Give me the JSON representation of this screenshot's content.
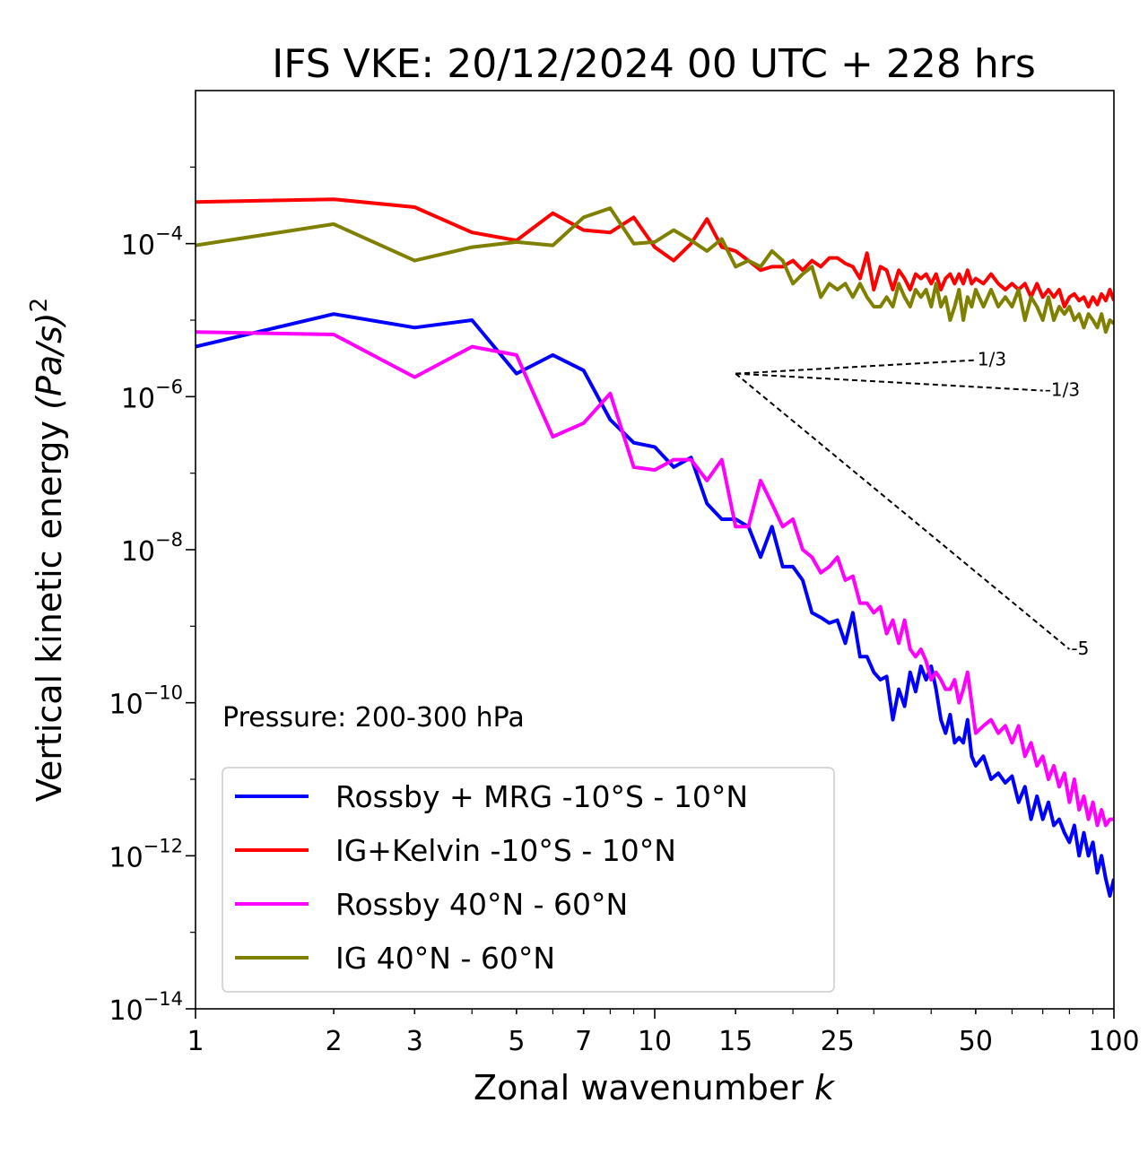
{
  "chart_data": {
    "type": "line",
    "title": "IFS VKE: 20/12/2024 00 UTC + 228 hrs",
    "xlabel": "Zonal wavenumber",
    "xlabel_var": "k",
    "ylabel": "Vertical kinetic energy",
    "ylabel_unit": "(Pa/s)",
    "ylabel_unit_exp": "2",
    "x_scale": "log",
    "y_scale": "log",
    "xlim": [
      1,
      100
    ],
    "ylim": [
      1e-14,
      0.01
    ],
    "x_ticks": [
      {
        "value": 1,
        "label": "1"
      },
      {
        "value": 2,
        "label": "2"
      },
      {
        "value": 3,
        "label": "3"
      },
      {
        "value": 5,
        "label": "5"
      },
      {
        "value": 7,
        "label": "7"
      },
      {
        "value": 10,
        "label": "10"
      },
      {
        "value": 15,
        "label": "15"
      },
      {
        "value": 25,
        "label": "25"
      },
      {
        "value": 50,
        "label": "50"
      },
      {
        "value": 100,
        "label": "100"
      }
    ],
    "y_ticks": [
      {
        "value": -14,
        "base": "10",
        "exp": "−14"
      },
      {
        "value": -12,
        "base": "10",
        "exp": "−12"
      },
      {
        "value": -10,
        "base": "10",
        "exp": "−10"
      },
      {
        "value": -8,
        "base": "10",
        "exp": "−8"
      },
      {
        "value": -6,
        "base": "10",
        "exp": "−6"
      },
      {
        "value": -4,
        "base": "10",
        "exp": "−4"
      }
    ],
    "annotation": "Pressure: 200-300 hPa",
    "legend_position": "lower-left",
    "grid": false,
    "reference_lines": [
      {
        "label": "1/3",
        "x": [
          15,
          50
        ],
        "y": [
          2e-06,
          3e-06
        ]
      },
      {
        "label": "-1/3",
        "x": [
          15,
          70
        ],
        "y": [
          2e-06,
          1.2e-06
        ]
      },
      {
        "label": "-5",
        "x": [
          15,
          80
        ],
        "y": [
          2e-06,
          5e-10
        ]
      }
    ],
    "series": [
      {
        "name": "Rossby + MRG -10°S - 10°N",
        "color": "#0000ff",
        "x": [
          1,
          2,
          3,
          4,
          5,
          6,
          7,
          8,
          9,
          10,
          11,
          12,
          13,
          14,
          15,
          16,
          17,
          18,
          19,
          20,
          21,
          22,
          23,
          24,
          25,
          26,
          27,
          28,
          29,
          30,
          31,
          32,
          33,
          34,
          35,
          36,
          37,
          38,
          39,
          40,
          41,
          42,
          43,
          44,
          45,
          46,
          47,
          48,
          49,
          50,
          52,
          54,
          56,
          58,
          60,
          62,
          64,
          66,
          68,
          70,
          72,
          74,
          76,
          78,
          80,
          82,
          84,
          86,
          88,
          90,
          92,
          94,
          96,
          98,
          100
        ],
        "y": [
          4.5e-06,
          1.2e-05,
          8e-06,
          1e-05,
          2e-06,
          3.5e-06,
          2.2e-06,
          5e-07,
          2.5e-07,
          2.2e-07,
          1.2e-07,
          1.6e-07,
          4e-08,
          2.5e-08,
          2.5e-08,
          2e-08,
          8e-09,
          2e-08,
          6e-09,
          6e-09,
          4e-09,
          1.5e-09,
          1.3e-09,
          1.1e-09,
          1.2e-09,
          6e-10,
          1.5e-09,
          4e-10,
          4e-10,
          2.5e-10,
          2e-10,
          2.2e-10,
          6e-11,
          1.5e-10,
          9e-11,
          2.5e-10,
          1.4e-10,
          3e-10,
          2e-10,
          3e-10,
          1.5e-10,
          6e-11,
          4e-11,
          7e-11,
          3e-11,
          3.5e-11,
          3e-11,
          6e-11,
          2e-11,
          1.5e-11,
          2e-11,
          1e-11,
          1.2e-11,
          9e-12,
          1.1e-11,
          5e-12,
          8e-12,
          3e-12,
          6e-12,
          3e-12,
          5e-12,
          2.5e-12,
          3e-12,
          2e-12,
          1.5e-12,
          2.5e-12,
          1e-12,
          2e-12,
          1e-12,
          1.5e-12,
          6e-13,
          1e-12,
          5e-13,
          3e-13,
          5e-13
        ]
      },
      {
        "name": "IG+Kelvin -10°S - 10°N",
        "color": "#ff0000",
        "x": [
          1,
          2,
          3,
          4,
          5,
          6,
          7,
          8,
          9,
          10,
          11,
          12,
          13,
          14,
          15,
          16,
          17,
          18,
          19,
          20,
          21,
          22,
          23,
          24,
          25,
          26,
          27,
          28,
          29,
          30,
          31,
          32,
          33,
          34,
          35,
          36,
          37,
          38,
          39,
          40,
          41,
          42,
          43,
          44,
          45,
          46,
          47,
          48,
          49,
          50,
          52,
          54,
          56,
          58,
          60,
          62,
          64,
          66,
          68,
          70,
          72,
          74,
          76,
          78,
          80,
          82,
          84,
          86,
          88,
          90,
          92,
          94,
          96,
          98,
          100
        ],
        "y": [
          0.00035,
          0.00038,
          0.0003,
          0.00014,
          0.00011,
          0.00025,
          0.00015,
          0.00014,
          0.00022,
          9e-05,
          6e-05,
          0.0001,
          0.00021,
          9e-05,
          8e-05,
          6e-05,
          4.5e-05,
          5e-05,
          5e-05,
          6e-05,
          4.5e-05,
          6e-05,
          5e-05,
          6.5e-05,
          6.5e-05,
          5.5e-05,
          5e-05,
          3.5e-05,
          7.5e-05,
          2.5e-05,
          5e-05,
          4.5e-05,
          2.5e-05,
          4.5e-05,
          3.5e-05,
          2.5e-05,
          4e-05,
          3.5e-05,
          4e-05,
          3e-05,
          4e-05,
          2.5e-05,
          3.5e-05,
          4e-05,
          3e-05,
          4e-05,
          3e-05,
          4.5e-05,
          3e-05,
          3.5e-05,
          3e-05,
          4e-05,
          3e-05,
          2.5e-05,
          3e-05,
          2.5e-05,
          3e-05,
          2e-05,
          3e-05,
          2e-05,
          2.5e-05,
          2e-05,
          2.5e-05,
          1.5e-05,
          2e-05,
          2.2e-05,
          1.8e-05,
          2e-05,
          1.5e-05,
          2e-05,
          1.6e-05,
          2.2e-05,
          1.8e-05,
          2.5e-05,
          1.8e-05
        ]
      },
      {
        "name": "Rossby 40°N - 60°N",
        "color": "#ff00ff",
        "x": [
          1,
          2,
          3,
          4,
          5,
          6,
          7,
          8,
          9,
          10,
          11,
          12,
          13,
          14,
          15,
          16,
          17,
          18,
          19,
          20,
          21,
          22,
          23,
          24,
          25,
          26,
          27,
          28,
          29,
          30,
          31,
          32,
          33,
          34,
          35,
          36,
          37,
          38,
          39,
          40,
          41,
          42,
          43,
          44,
          45,
          46,
          47,
          48,
          49,
          50,
          52,
          54,
          56,
          58,
          60,
          62,
          64,
          66,
          68,
          70,
          72,
          74,
          76,
          78,
          80,
          82,
          84,
          86,
          88,
          90,
          92,
          94,
          96,
          98,
          100
        ],
        "y": [
          7e-06,
          6.5e-06,
          1.8e-06,
          4.5e-06,
          3.5e-06,
          3e-07,
          4.5e-07,
          1.1e-06,
          1.2e-07,
          1.1e-07,
          1.5e-07,
          1.5e-07,
          8e-08,
          1.5e-07,
          2e-08,
          2e-08,
          8e-08,
          4e-08,
          2e-08,
          2.5e-08,
          1e-08,
          8e-09,
          5e-09,
          6e-09,
          8e-09,
          4e-09,
          4.5e-09,
          2e-09,
          2e-09,
          1.5e-09,
          1.8e-09,
          8e-10,
          1.2e-09,
          6e-10,
          1.2e-09,
          5e-10,
          4e-10,
          5e-10,
          3.5e-10,
          2e-10,
          2.5e-10,
          2e-10,
          1.5e-10,
          1.5e-10,
          2e-10,
          1e-10,
          1.5e-10,
          2.5e-10,
          1e-10,
          4e-11,
          5e-11,
          6e-11,
          4e-11,
          5e-11,
          3e-11,
          5e-11,
          2e-11,
          3e-11,
          1.5e-11,
          2e-11,
          1e-11,
          1.5e-11,
          8e-12,
          1.2e-11,
          5e-12,
          1e-11,
          4e-12,
          6e-12,
          3e-12,
          5e-12,
          2.5e-12,
          4e-12,
          2.5e-12,
          3e-12,
          3e-12
        ]
      },
      {
        "name": "IG 40°N - 60°N",
        "color": "#808000",
        "x": [
          1,
          2,
          3,
          4,
          5,
          6,
          7,
          8,
          9,
          10,
          11,
          12,
          13,
          14,
          15,
          16,
          17,
          18,
          19,
          20,
          21,
          22,
          23,
          24,
          25,
          26,
          27,
          28,
          29,
          30,
          31,
          32,
          33,
          34,
          35,
          36,
          37,
          38,
          39,
          40,
          41,
          42,
          43,
          44,
          45,
          46,
          47,
          48,
          49,
          50,
          52,
          54,
          56,
          58,
          60,
          62,
          64,
          66,
          68,
          70,
          72,
          74,
          76,
          78,
          80,
          82,
          84,
          86,
          88,
          90,
          92,
          94,
          96,
          98,
          100
        ],
        "y": [
          9.5e-05,
          0.00018,
          6e-05,
          9e-05,
          0.000105,
          9.5e-05,
          0.00022,
          0.00029,
          0.0001,
          0.000105,
          0.00015,
          0.00011,
          8e-05,
          0.000115,
          5e-05,
          6e-05,
          5e-05,
          8e-05,
          6e-05,
          3e-05,
          4e-05,
          5e-05,
          2e-05,
          3e-05,
          2.5e-05,
          3e-05,
          2e-05,
          3e-05,
          2e-05,
          1.5e-05,
          1.5e-05,
          2e-05,
          1.5e-05,
          3e-05,
          2e-05,
          1.5e-05,
          2.5e-05,
          2e-05,
          2.5e-05,
          1.5e-05,
          3e-05,
          1.5e-05,
          2e-05,
          1e-05,
          1.5e-05,
          2.5e-05,
          1e-05,
          2e-05,
          1.5e-05,
          2.5e-05,
          1.5e-05,
          2.5e-05,
          1.5e-05,
          2e-05,
          1.5e-05,
          2.5e-05,
          1e-05,
          2e-05,
          1.5e-05,
          1e-05,
          2e-05,
          1e-05,
          1.5e-05,
          1.2e-05,
          1.5e-05,
          1e-05,
          1.2e-05,
          8e-06,
          1.2e-05,
          1e-05,
          8e-06,
          1.2e-05,
          7e-06,
          1e-05,
          9e-06
        ]
      }
    ]
  }
}
